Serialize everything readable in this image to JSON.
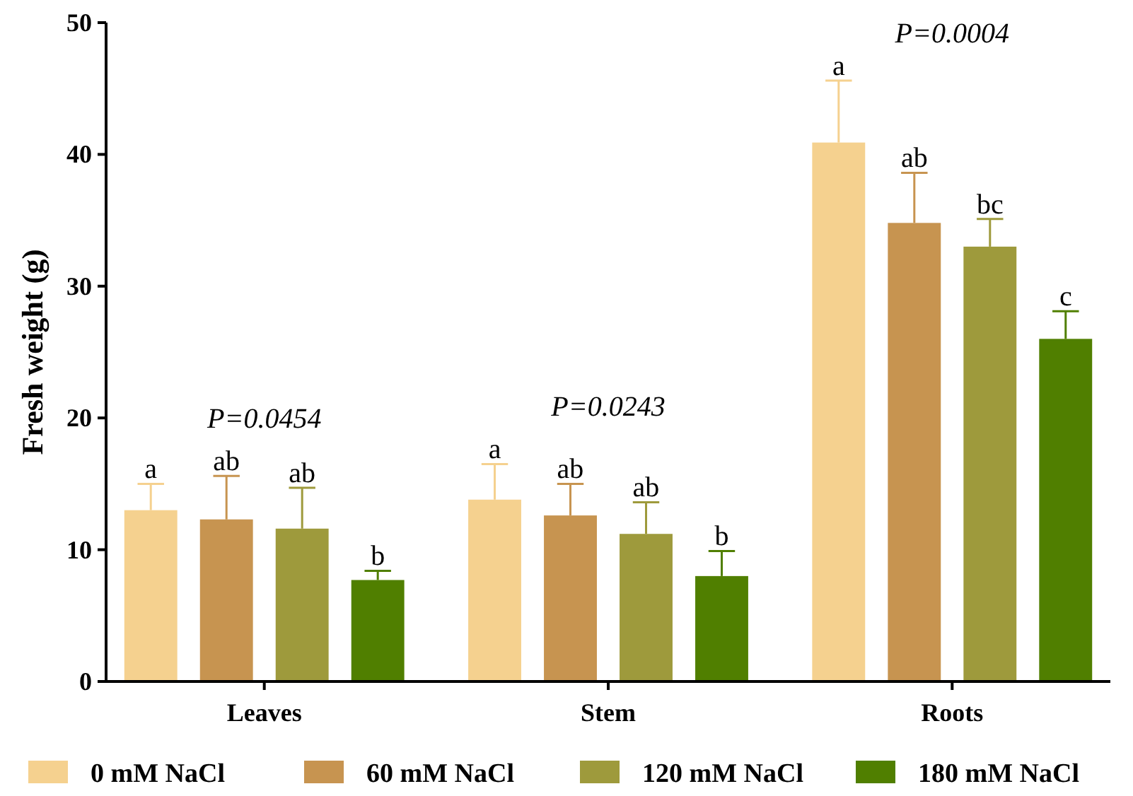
{
  "chart_data": {
    "type": "bar",
    "ylabel": "Fresh weight (g)",
    "categories": [
      "Leaves",
      "Stem",
      "Roots"
    ],
    "series": [
      {
        "name": "0 mM NaCl",
        "color": "#f5d18f",
        "values": [
          13.0,
          13.8,
          40.9
        ],
        "errors": [
          [
            13.0,
            15.0
          ],
          [
            13.8,
            16.5
          ],
          [
            40.9,
            45.6
          ]
        ],
        "value_labels": [
          "a",
          "a",
          "a"
        ]
      },
      {
        "name": "60 mM NaCl",
        "color": "#c79450",
        "values": [
          12.3,
          12.6,
          34.8
        ],
        "errors": [
          [
            12.3,
            15.6
          ],
          [
            12.6,
            15.0
          ],
          [
            34.8,
            38.6
          ]
        ],
        "value_labels": [
          "ab",
          "ab",
          "ab"
        ]
      },
      {
        "name": "120 mM NaCl",
        "color": "#9e9a3c",
        "values": [
          11.6,
          11.2,
          33.0
        ],
        "errors": [
          [
            11.6,
            14.7
          ],
          [
            11.2,
            13.6
          ],
          [
            33.0,
            35.1
          ]
        ],
        "value_labels": [
          "ab",
          "ab",
          "bc"
        ]
      },
      {
        "name": "180 mM NaCl",
        "color": "#507f00",
        "values": [
          7.7,
          8.0,
          26.0
        ],
        "errors": [
          [
            7.7,
            8.4
          ],
          [
            8.0,
            9.9
          ],
          [
            26.0,
            28.1
          ]
        ],
        "value_labels": [
          "b",
          "b",
          "c"
        ]
      }
    ],
    "annotations": [
      "P=0.0454",
      "P=0.0243",
      "P=0.0004"
    ],
    "ylim": [
      0,
      50
    ],
    "yticks": [
      0,
      10,
      20,
      30,
      40,
      50
    ],
    "grid": false,
    "legend": "bottom"
  }
}
